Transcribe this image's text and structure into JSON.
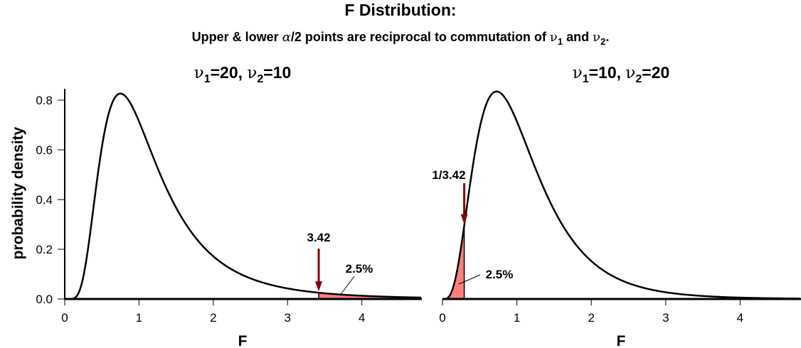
{
  "chart_data": [
    {
      "type": "area",
      "title": "F Distribution:",
      "subtitle": "Upper & lower α/2 points are reciprocal to commutation of ν1 and ν2.",
      "subtitle_parts": {
        "pre": "Upper & lower ",
        "alpha": "α",
        "mid": "/2 points are reciprocal to commutation of ",
        "nu": "ν",
        "sub1": "1",
        "and": " and ",
        "sub2": "2",
        "end": "."
      },
      "panel_title": {
        "nu": "ν",
        "sub1": "1",
        "eq1": "=20, ",
        "sub2": "2",
        "eq2": "=10"
      },
      "df1": 20,
      "df2": 10,
      "xlabel": "F",
      "ylabel": "probability density",
      "xlim": [
        0,
        4.8
      ],
      "ylim": [
        0,
        0.85
      ],
      "xticks": [
        "0",
        "1",
        "2",
        "3",
        "4"
      ],
      "yticks": [
        "0.0",
        "0.2",
        "0.4",
        "0.6",
        "0.8"
      ],
      "shaded_region": {
        "from": 3.42,
        "to": 4.8,
        "tail": "upper"
      },
      "cutoff_label": "3.42",
      "percent_label": "2.5%",
      "colors": {
        "curve": "#000000",
        "fill": "#ff7f7f",
        "arrow": "#8b0000"
      }
    },
    {
      "type": "area",
      "panel_title": {
        "nu": "ν",
        "sub1": "1",
        "eq1": "=10, ",
        "sub2": "2",
        "eq2": "=20"
      },
      "df1": 10,
      "df2": 20,
      "xlabel": "F",
      "xlim": [
        0,
        4.8
      ],
      "ylim": [
        0,
        0.85
      ],
      "xticks": [
        "0",
        "1",
        "2",
        "3",
        "4"
      ],
      "shaded_region": {
        "from": 0,
        "to": 0.2924,
        "tail": "lower"
      },
      "cutoff_label": "1/3.42",
      "percent_label": "2.5%",
      "colors": {
        "curve": "#000000",
        "fill": "#ff7f7f",
        "arrow": "#8b0000"
      }
    }
  ]
}
